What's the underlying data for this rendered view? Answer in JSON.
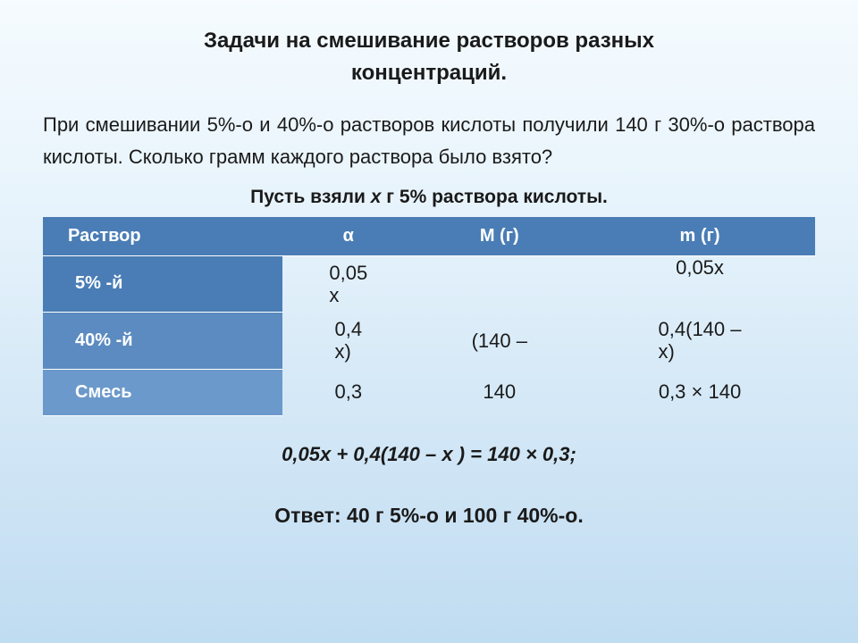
{
  "title_line1": "Задачи на смешивание растворов разных",
  "title_line2": "концентраций.",
  "problem": "При смешивании 5%-о и 40%-о растворов кислоты получили 140 г 30%-о раствора кислоты. Сколько грамм каждого раствора было взято?",
  "let_prefix": "Пусть взяли ",
  "let_italic": "х",
  "let_suffix": " г 5% раствора кислоты.",
  "headers": {
    "c0": "Раствор",
    "c1": "α",
    "c2": "M (г)",
    "c3": "m (г)"
  },
  "rows": {
    "r1": {
      "label": "5% -й",
      "alpha_a": "0,05",
      "alpha_b": "х",
      "M": "",
      "m": "0,05х"
    },
    "r2": {
      "label": "40% -й",
      "alpha_a": "0,4",
      "alpha_b": "х)",
      "M": "(140 –",
      "m_a": "0,4(140 –",
      "m_b": "х)"
    },
    "r3": {
      "label": "Смесь",
      "alpha": "0,3",
      "M": "140",
      "m": "0,3 × 140"
    }
  },
  "equation": "0,05х + 0,4(140 – х ) = 140 × 0,3;",
  "answer": "Ответ: 40 г 5%-о и 100 г 40%-о."
}
